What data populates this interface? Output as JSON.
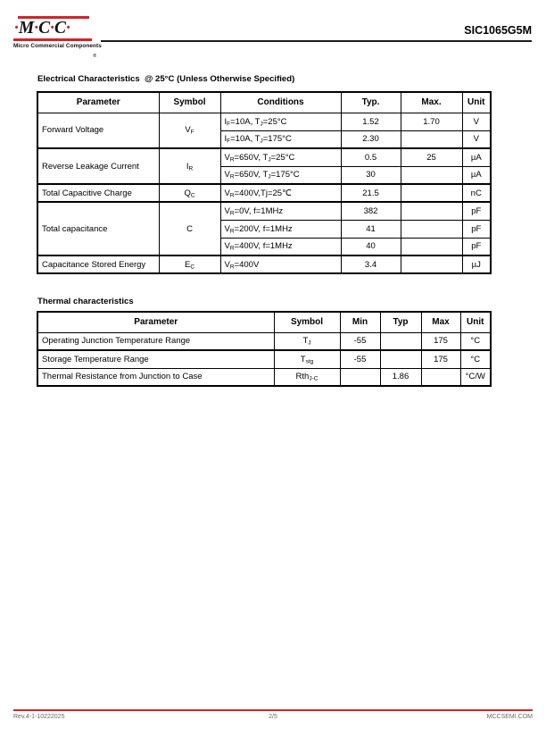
{
  "colors": {
    "brand_red": "#d2232a",
    "rule_dark": "#1c1c1c",
    "footer_gray": "#686868"
  },
  "header": {
    "logo": {
      "parts": [
        "·",
        "M",
        "·",
        "C",
        "·",
        "C",
        "·"
      ],
      "reg_mark": "®",
      "tagline": "Micro Commercial Components"
    },
    "part_number": "SIC1065G5M"
  },
  "electrical": {
    "title": "Electrical Characteristics  @ 25°C (Unless Otherwise Specified)",
    "columns": [
      "Parameter",
      "Symbol",
      "Conditions",
      "Typ.",
      "Max.",
      "Unit"
    ],
    "rows": [
      {
        "cells": [
          {
            "t": "Forward Voltage",
            "rs": 2,
            "left": true
          },
          {
            "t": "V_{F}",
            "rs": 2
          },
          {
            "t": "I_{F}=10A, T_{J}=25°C",
            "left": true
          },
          {
            "t": "1.52"
          },
          {
            "t": "1.70"
          },
          {
            "t": "V"
          }
        ]
      },
      {
        "cells": [
          {
            "t": "I_{F}=10A, T_{J}=175°C",
            "left": true
          },
          {
            "t": "2.30"
          },
          {
            "t": ""
          },
          {
            "t": "V"
          }
        ]
      },
      {
        "group": true,
        "cells": [
          {
            "t": "Reverse Leakage Current",
            "rs": 2,
            "left": true
          },
          {
            "t": "I_{R}",
            "rs": 2
          },
          {
            "t": "V_{R}=650V, T_{J}=25°C",
            "left": true
          },
          {
            "t": "0.5"
          },
          {
            "t": "25"
          },
          {
            "t": "µA"
          }
        ]
      },
      {
        "cells": [
          {
            "t": "V_{R}=650V, T_{J}=175°C",
            "left": true
          },
          {
            "t": "30"
          },
          {
            "t": ""
          },
          {
            "t": "µA"
          }
        ]
      },
      {
        "group": true,
        "cells": [
          {
            "t": "Total Capacitive Charge",
            "left": true
          },
          {
            "t": "Q_{C}"
          },
          {
            "t": "V_{R}=400V,Tj=25℃",
            "left": true
          },
          {
            "t": "21.5"
          },
          {
            "t": ""
          },
          {
            "t": "nC"
          }
        ]
      },
      {
        "group": true,
        "cells": [
          {
            "t": "Total capacitance",
            "rs": 3,
            "left": true
          },
          {
            "t": "C",
            "rs": 3
          },
          {
            "t": "V_{R}=0V, f=1MHz",
            "left": true
          },
          {
            "t": "382"
          },
          {
            "t": ""
          },
          {
            "t": "pF"
          }
        ]
      },
      {
        "cells": [
          {
            "t": "V_{R}=200V, f=1MHz",
            "left": true
          },
          {
            "t": "41"
          },
          {
            "t": ""
          },
          {
            "t": "pF"
          }
        ]
      },
      {
        "cells": [
          {
            "t": "V_{R}=400V, f=1MHz",
            "left": true
          },
          {
            "t": "40"
          },
          {
            "t": ""
          },
          {
            "t": "pF"
          }
        ]
      },
      {
        "group": true,
        "cells": [
          {
            "t": "Capacitance Stored Energy",
            "left": true
          },
          {
            "t": "E_{C}"
          },
          {
            "t": "V_{R}=400V",
            "left": true
          },
          {
            "t": "3.4"
          },
          {
            "t": ""
          },
          {
            "t": "µJ"
          }
        ]
      }
    ]
  },
  "thermal": {
    "title": "Thermal characteristics",
    "columns": [
      "Parameter",
      "Symbol",
      "Min",
      "Typ",
      "Max",
      "Unit"
    ],
    "rows": [
      {
        "cells": [
          {
            "t": "Operating Junction Temperature Range",
            "left": true
          },
          {
            "t": "T_{J}"
          },
          {
            "t": "-55"
          },
          {
            "t": ""
          },
          {
            "t": "175"
          },
          {
            "t": "°C"
          }
        ]
      },
      {
        "group": true,
        "cells": [
          {
            "t": "Storage Temperature Range",
            "left": true
          },
          {
            "t": "T_{stg}"
          },
          {
            "t": "-55"
          },
          {
            "t": ""
          },
          {
            "t": "175"
          },
          {
            "t": "°C"
          }
        ]
      },
      {
        "cells": [
          {
            "t": "Thermal Resistance from Junction to Case",
            "left": true
          },
          {
            "t": "Rth_{J-C}"
          },
          {
            "t": ""
          },
          {
            "t": "1.86"
          },
          {
            "t": ""
          },
          {
            "t": "°C/W"
          }
        ]
      }
    ]
  },
  "footer": {
    "revision": "Rev.4-1-10222025",
    "page": "2/5",
    "website": "MCCSEMI.COM"
  }
}
